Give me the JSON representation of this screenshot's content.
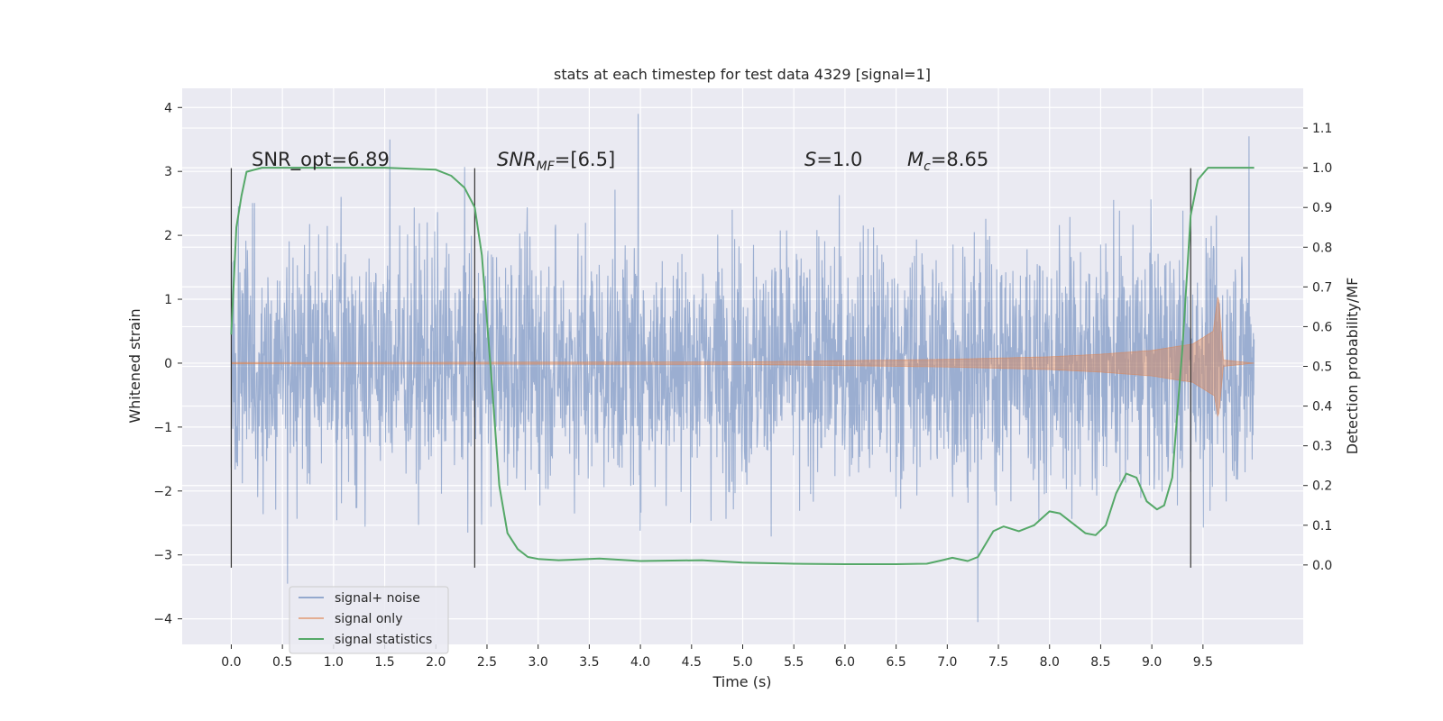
{
  "chart_data": {
    "type": "line",
    "title": "stats at each timestep for test data 4329 [signal=1]",
    "xlabel": "Time (s)",
    "ylabel_left": "Whitened strain",
    "ylabel_right": "Detection probability/MF",
    "xlim": [
      -0.48,
      10.48
    ],
    "ylim_left": [
      -4.4,
      4.3
    ],
    "ylim_right": [
      -0.2,
      1.2
    ],
    "x_ticks": [
      "0.0",
      "0.5",
      "1.0",
      "1.5",
      "2.0",
      "2.5",
      "3.0",
      "3.5",
      "4.0",
      "4.5",
      "5.0",
      "5.5",
      "6.0",
      "6.5",
      "7.0",
      "7.5",
      "8.0",
      "8.5",
      "9.0",
      "9.5"
    ],
    "y_ticks_left": [
      "−4",
      "−3",
      "−2",
      "−1",
      "0",
      "1",
      "2",
      "3",
      "4"
    ],
    "y_ticks_right": [
      "0.0",
      "0.1",
      "0.2",
      "0.3",
      "0.4",
      "0.5",
      "0.6",
      "0.7",
      "0.8",
      "0.9",
      "1.0",
      "1.1"
    ],
    "grid": true,
    "legend_position": "lower-left",
    "annotations": {
      "snr_opt": "SNR_opt=6.89",
      "snr_mf_italic": "SNR",
      "snr_mf_sub": "MF",
      "snr_mf_rest": "=[6.5]",
      "s_italic": "S",
      "s_rest": "=1.0",
      "mc_italic": "M",
      "mc_sub": "c",
      "mc_rest": "=8.65"
    },
    "vertical_markers_x": [
      0.0,
      2.38,
      9.38
    ],
    "vertical_markers_range": [
      -3.2,
      3.05
    ],
    "series": [
      {
        "name": "signal+ noise",
        "color": "#4c72b0",
        "noise_sigma": 1.0,
        "x_range": [
          0.0,
          10.0
        ],
        "notable_peaks": [
          [
            3.98,
            3.9
          ],
          [
            7.3,
            -4.05
          ],
          [
            9.95,
            3.55
          ],
          [
            1.55,
            3.5
          ],
          [
            0.55,
            -3.45
          ]
        ]
      },
      {
        "name": "signal only",
        "color": "#dd8452",
        "chirp_end_time": 9.65,
        "envelope": [
          [
            0.0,
            0.01
          ],
          [
            5.0,
            0.02
          ],
          [
            7.0,
            0.06
          ],
          [
            8.0,
            0.1
          ],
          [
            8.5,
            0.14
          ],
          [
            9.0,
            0.2
          ],
          [
            9.4,
            0.3
          ],
          [
            9.6,
            0.5
          ],
          [
            9.65,
            1.1
          ],
          [
            9.7,
            0.05
          ],
          [
            10.0,
            0.0
          ]
        ]
      },
      {
        "name": "signal statistics",
        "color": "#55a868",
        "axis": "right",
        "points": [
          [
            0.0,
            0.58
          ],
          [
            0.05,
            0.85
          ],
          [
            0.1,
            0.93
          ],
          [
            0.15,
            0.99
          ],
          [
            0.3,
            1.0
          ],
          [
            1.0,
            1.0
          ],
          [
            1.5,
            1.0
          ],
          [
            2.0,
            0.995
          ],
          [
            2.15,
            0.98
          ],
          [
            2.28,
            0.95
          ],
          [
            2.38,
            0.9
          ],
          [
            2.45,
            0.78
          ],
          [
            2.55,
            0.45
          ],
          [
            2.62,
            0.2
          ],
          [
            2.7,
            0.08
          ],
          [
            2.8,
            0.04
          ],
          [
            2.9,
            0.02
          ],
          [
            3.0,
            0.015
          ],
          [
            3.2,
            0.012
          ],
          [
            3.6,
            0.016
          ],
          [
            4.0,
            0.01
          ],
          [
            4.6,
            0.012
          ],
          [
            5.0,
            0.006
          ],
          [
            5.5,
            0.003
          ],
          [
            6.0,
            0.002
          ],
          [
            6.5,
            0.002
          ],
          [
            6.8,
            0.003
          ],
          [
            6.95,
            0.012
          ],
          [
            7.05,
            0.018
          ],
          [
            7.2,
            0.01
          ],
          [
            7.3,
            0.02
          ],
          [
            7.45,
            0.085
          ],
          [
            7.55,
            0.097
          ],
          [
            7.7,
            0.085
          ],
          [
            7.85,
            0.1
          ],
          [
            8.0,
            0.135
          ],
          [
            8.1,
            0.13
          ],
          [
            8.25,
            0.1
          ],
          [
            8.35,
            0.08
          ],
          [
            8.45,
            0.075
          ],
          [
            8.55,
            0.1
          ],
          [
            8.65,
            0.18
          ],
          [
            8.75,
            0.23
          ],
          [
            8.85,
            0.22
          ],
          [
            8.95,
            0.16
          ],
          [
            9.05,
            0.14
          ],
          [
            9.12,
            0.15
          ],
          [
            9.2,
            0.22
          ],
          [
            9.3,
            0.55
          ],
          [
            9.38,
            0.88
          ],
          [
            9.45,
            0.97
          ],
          [
            9.55,
            1.0
          ],
          [
            10.0,
            1.0
          ]
        ]
      }
    ]
  }
}
